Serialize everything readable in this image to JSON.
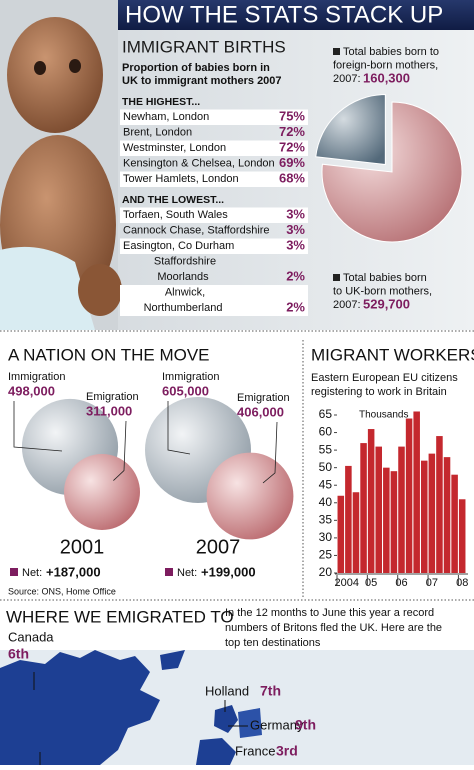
{
  "header": {
    "title": "HOW THE STATS STACK UP"
  },
  "births": {
    "title": "IMMIGRANT BIRTHS",
    "subtitle": [
      "Proportion of babies born in",
      "UK to immigrant mothers 2007"
    ],
    "highest_heading": "THE HIGHEST...",
    "highest": [
      {
        "place": "Newham, London",
        "value": "75%"
      },
      {
        "place": "Brent, London",
        "value": "72%"
      },
      {
        "place": "Westminster, London",
        "value": "72%"
      },
      {
        "place": "Kensington & Chelsea, London",
        "value": "69%"
      },
      {
        "place": "Tower Hamlets, London",
        "value": "68%"
      }
    ],
    "lowest_heading": "AND THE LOWEST...",
    "lowest": [
      {
        "place": "Torfaen, South Wales",
        "value": "3%"
      },
      {
        "place": "Cannock Chase, Staffordshire",
        "value": "3%"
      },
      {
        "place": "Easington, Co Durham",
        "value": "3%"
      },
      {
        "place": [
          "Staffordshire",
          "Moorlands"
        ],
        "value": "2%"
      },
      {
        "place": [
          "Alnwick,",
          "Northumberland"
        ],
        "value": "2%"
      }
    ]
  },
  "chart_data": [
    {
      "type": "pie",
      "labels": [
        [
          "Total babies born to",
          "foreign-born mothers,",
          "2007:"
        ],
        [
          "Total babies born",
          "to UK-born mothers,",
          "2007:"
        ]
      ],
      "values": [
        160300,
        529700
      ],
      "value_labels": [
        "160,300",
        "529,700"
      ],
      "colors": [
        "#6f8494",
        "#c98a8d"
      ]
    },
    {
      "type": "bubble",
      "title": "A NATION ON THE MOVE",
      "categories": [
        "2001",
        "2007"
      ],
      "series": [
        {
          "name": "Immigration",
          "color": "#a9b4bc",
          "values": [
            498000,
            605000
          ],
          "value_labels": [
            "498,000",
            "605,000"
          ]
        },
        {
          "name": "Emigration",
          "color": "#cf8f92",
          "values": [
            311000,
            406000
          ],
          "value_labels": [
            "311,000",
            "406,000"
          ]
        }
      ],
      "net": {
        "label": "Net:",
        "values": [
          187000,
          199000
        ],
        "value_labels": [
          "+187,000",
          "+199,000"
        ]
      },
      "source": "Source: ONS, Home Office"
    },
    {
      "type": "bar",
      "title": "MIGRANT WORKERS",
      "subtitle": [
        "Eastern European EU citizens",
        "registering to work in Britain"
      ],
      "ylabel": "Thousands",
      "color": "#c4282e",
      "categories": [
        "2004",
        null,
        null,
        null,
        "05",
        null,
        null,
        null,
        "06",
        null,
        null,
        null,
        "07",
        null,
        null,
        null,
        "08"
      ],
      "values": [
        42,
        50.5,
        43,
        57,
        61,
        56,
        50,
        49,
        56,
        64,
        66,
        52,
        54,
        59,
        53,
        48,
        41
      ],
      "ylim": [
        20,
        68
      ],
      "yticks": [
        20,
        25,
        30,
        35,
        40,
        45,
        50,
        55,
        60,
        65
      ]
    }
  ],
  "emigration": {
    "title": "WHERE WE EMIGRATED TO",
    "intro": [
      "In the 12 months to June this year a record",
      "numbers of Britons fled the UK. Here are the",
      "top ten destinations"
    ],
    "destinations": [
      {
        "country": "Canada",
        "rank": "6th"
      },
      {
        "country": "Holland",
        "rank": "7th"
      },
      {
        "country": "Germany",
        "rank": "9th"
      },
      {
        "country": "France",
        "rank": "3rd"
      }
    ]
  }
}
